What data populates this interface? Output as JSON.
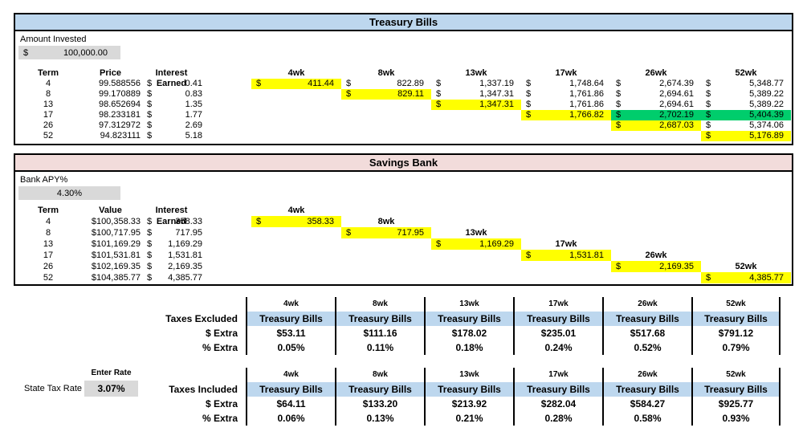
{
  "currency_symbol": "$",
  "colors": {
    "treasury_header": "#BDD7EE",
    "savings_header": "#F2DCDB",
    "highlight_yellow": "#FFFF00",
    "highlight_green": "#00CD6C",
    "input_gray": "#D9D9D9",
    "band_blue": "#BDD7EE"
  },
  "treasury": {
    "title": "Treasury Bills",
    "amount_label": "Amount Invested",
    "amount_value": "100,000.00",
    "headers": {
      "term": "Term",
      "price": "Price",
      "interest": "Interest Earned"
    },
    "weeks": [
      "4wk",
      "8wk",
      "13wk",
      "17wk",
      "26wk",
      "52wk"
    ],
    "rows": [
      {
        "term": "4",
        "price": "99.588556",
        "interest": "0.41",
        "cells": [
          {
            "v": "411.44",
            "hl": "yellow"
          },
          {
            "v": "822.89"
          },
          {
            "v": "1,337.19"
          },
          {
            "v": "1,748.64"
          },
          {
            "v": "2,674.39"
          },
          {
            "v": "5,348.77"
          }
        ]
      },
      {
        "term": "8",
        "price": "99.170889",
        "interest": "0.83",
        "cells": [
          null,
          {
            "v": "829.11",
            "hl": "yellow"
          },
          {
            "v": "1,347.31"
          },
          {
            "v": "1,761.86"
          },
          {
            "v": "2,694.61"
          },
          {
            "v": "5,389.22"
          }
        ]
      },
      {
        "term": "13",
        "price": "98.652694",
        "interest": "1.35",
        "cells": [
          null,
          null,
          {
            "v": "1,347.31",
            "hl": "yellow"
          },
          {
            "v": "1,761.86"
          },
          {
            "v": "2,694.61"
          },
          {
            "v": "5,389.22"
          }
        ]
      },
      {
        "term": "17",
        "price": "98.233181",
        "interest": "1.77",
        "cells": [
          null,
          null,
          null,
          {
            "v": "1,766.82",
            "hl": "yellow"
          },
          {
            "v": "2,702.19",
            "hl": "green"
          },
          {
            "v": "5,404.39",
            "hl": "green"
          }
        ]
      },
      {
        "term": "26",
        "price": "97.312972",
        "interest": "2.69",
        "cells": [
          null,
          null,
          null,
          null,
          {
            "v": "2,687.03",
            "hl": "yellow"
          },
          {
            "v": "5,374.06"
          }
        ]
      },
      {
        "term": "52",
        "price": "94.823111",
        "interest": "5.18",
        "cells": [
          null,
          null,
          null,
          null,
          null,
          {
            "v": "5,176.89",
            "hl": "yellow"
          }
        ]
      }
    ]
  },
  "savings": {
    "title": "Savings Bank",
    "apy_label": "Bank APY%",
    "apy_value": "4.30%",
    "headers": {
      "term": "Term",
      "value": "Value",
      "interest": "Interest Earned"
    },
    "weeks": [
      "4wk",
      "8wk",
      "13wk",
      "17wk",
      "26wk",
      "52wk"
    ],
    "rows": [
      {
        "term": "4",
        "value": "$100,358.33",
        "interest": "358.33",
        "week_index": 0,
        "week_value": "358.33"
      },
      {
        "term": "8",
        "value": "$100,717.95",
        "interest": "717.95",
        "week_index": 1,
        "week_value": "717.95"
      },
      {
        "term": "13",
        "value": "$101,169.29",
        "interest": "1,169.29",
        "week_index": 2,
        "week_value": "1,169.29"
      },
      {
        "term": "17",
        "value": "$101,531.81",
        "interest": "1,531.81",
        "week_index": 3,
        "week_value": "1,531.81"
      },
      {
        "term": "26",
        "value": "$102,169.35",
        "interest": "2,169.35",
        "week_index": 4,
        "week_value": "2,169.35"
      },
      {
        "term": "52",
        "value": "$104,385.77",
        "interest": "4,385.77",
        "week_index": 5,
        "week_value": "4,385.77"
      }
    ]
  },
  "comparisons": [
    {
      "name": "Taxes Excluded",
      "weeks": [
        "4wk",
        "8wk",
        "13wk",
        "17wk",
        "26wk",
        "52wk"
      ],
      "product": "Treasury Bills",
      "dollar_label": "$ Extra",
      "pct_label": "% Extra",
      "dollar": [
        "$53.11",
        "$111.16",
        "$178.02",
        "$235.01",
        "$517.68",
        "$791.12"
      ],
      "pct": [
        "0.05%",
        "0.11%",
        "0.18%",
        "0.24%",
        "0.52%",
        "0.79%"
      ]
    },
    {
      "name": "Taxes Included",
      "weeks": [
        "4wk",
        "8wk",
        "13wk",
        "17wk",
        "26wk",
        "52wk"
      ],
      "product": "Treasury Bills",
      "dollar_label": "$ Extra",
      "pct_label": "% Extra",
      "dollar": [
        "$64.11",
        "$133.20",
        "$213.92",
        "$282.04",
        "$584.27",
        "$925.77"
      ],
      "pct": [
        "0.06%",
        "0.13%",
        "0.21%",
        "0.28%",
        "0.58%",
        "0.93%"
      ]
    }
  ],
  "tax_input": {
    "enter_rate_label": "Enter Rate",
    "state_tax_label": "State Tax Rate",
    "rate": "3.07%"
  }
}
